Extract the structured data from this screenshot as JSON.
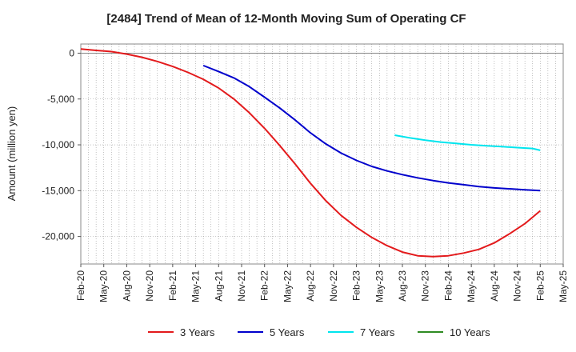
{
  "chart_data": {
    "type": "line",
    "title": "[2484]  Trend of Mean of 12-Month Moving Sum of Operating CF",
    "xlabel": "",
    "ylabel": "Amount (million yen)",
    "ylim": [
      -23000,
      1000
    ],
    "yticks": [
      0,
      -5000,
      -10000,
      -15000,
      -20000
    ],
    "ytick_labels": [
      "0",
      "-5,000",
      "-10,000",
      "-15,000",
      "-20,000"
    ],
    "xtick_labels": [
      "Feb-20",
      "May-20",
      "Aug-20",
      "Nov-20",
      "Feb-21",
      "May-21",
      "Aug-21",
      "Nov-21",
      "Feb-22",
      "May-22",
      "Aug-22",
      "Nov-22",
      "Feb-23",
      "May-23",
      "Aug-23",
      "Nov-23",
      "Feb-24",
      "May-24",
      "Aug-24",
      "Nov-24",
      "Feb-25",
      "May-25"
    ],
    "x_start": "Feb-20",
    "x_end": "May-25",
    "series": [
      {
        "name": "3 Years",
        "color": "#e31a1c",
        "points": [
          [
            0,
            450
          ],
          [
            2,
            300
          ],
          [
            4,
            170
          ],
          [
            6,
            -100
          ],
          [
            8,
            -450
          ],
          [
            10,
            -900
          ],
          [
            12,
            -1450
          ],
          [
            14,
            -2100
          ],
          [
            16,
            -2850
          ],
          [
            18,
            -3800
          ],
          [
            20,
            -5000
          ],
          [
            22,
            -6500
          ],
          [
            24,
            -8200
          ],
          [
            26,
            -10100
          ],
          [
            28,
            -12100
          ],
          [
            30,
            -14200
          ],
          [
            32,
            -16100
          ],
          [
            34,
            -17700
          ],
          [
            36,
            -19000
          ],
          [
            38,
            -20100
          ],
          [
            40,
            -21000
          ],
          [
            42,
            -21700
          ],
          [
            44,
            -22100
          ],
          [
            46,
            -22200
          ],
          [
            48,
            -22100
          ],
          [
            50,
            -21800
          ],
          [
            52,
            -21400
          ],
          [
            54,
            -20700
          ],
          [
            56,
            -19700
          ],
          [
            58,
            -18600
          ],
          [
            60,
            -17200
          ]
        ]
      },
      {
        "name": "5 Years",
        "color": "#0000cc",
        "points": [
          [
            16,
            -1350
          ],
          [
            18,
            -2000
          ],
          [
            20,
            -2700
          ],
          [
            22,
            -3650
          ],
          [
            24,
            -4800
          ],
          [
            26,
            -6000
          ],
          [
            28,
            -7300
          ],
          [
            30,
            -8700
          ],
          [
            32,
            -9900
          ],
          [
            34,
            -10900
          ],
          [
            36,
            -11700
          ],
          [
            38,
            -12350
          ],
          [
            40,
            -12850
          ],
          [
            42,
            -13250
          ],
          [
            44,
            -13600
          ],
          [
            46,
            -13900
          ],
          [
            48,
            -14150
          ],
          [
            50,
            -14350
          ],
          [
            52,
            -14550
          ],
          [
            54,
            -14700
          ],
          [
            56,
            -14800
          ],
          [
            58,
            -14900
          ],
          [
            60,
            -15000
          ]
        ]
      },
      {
        "name": "7 Years",
        "color": "#00e5ee",
        "points": [
          [
            41,
            -8950
          ],
          [
            43,
            -9250
          ],
          [
            45,
            -9500
          ],
          [
            47,
            -9700
          ],
          [
            49,
            -9850
          ],
          [
            51,
            -10000
          ],
          [
            53,
            -10100
          ],
          [
            55,
            -10200
          ],
          [
            57,
            -10300
          ],
          [
            59,
            -10400
          ],
          [
            60,
            -10600
          ]
        ]
      },
      {
        "name": "10 Years",
        "color": "#2e8b22",
        "points": []
      }
    ],
    "legend_position": "bottom",
    "grid": true
  }
}
